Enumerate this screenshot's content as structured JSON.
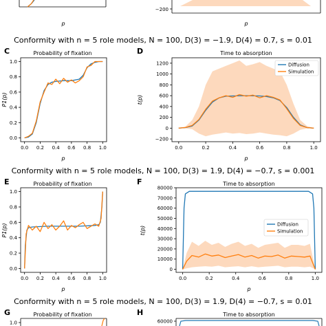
{
  "section_titles": [
    "Conformity with n = 5 role models, N = 100, D(3) = −1.9, D(4) = 0.7, s = 0.01",
    "Conformity with n = 5 role models, N = 100, D(3) = 1.9, D(4) = −0.7, s = 0.001",
    "Conformity with n = 5 role models, N = 100, D(3) = 1.9, D(4) = −0.7, s = 0.01"
  ],
  "colors": {
    "diffusion": "#1f77b4",
    "simulation": "#ff7f0e",
    "band": "#fdd9bd"
  },
  "chart_data": [
    {
      "id": "top-partial-right",
      "type": "line",
      "ylabel": "",
      "xlabel": "p",
      "yticks": [
        "−200"
      ],
      "ylim": [
        -250,
        1300
      ]
    },
    {
      "id": "C",
      "panel_label": "C",
      "type": "line",
      "title": "Probability of fixation",
      "xlabel": "p",
      "ylabel": "P1(p)",
      "xlim": [
        -0.05,
        1.05
      ],
      "ylim": [
        -0.05,
        1.05
      ],
      "xticks": [
        "0.0",
        "0.2",
        "0.4",
        "0.6",
        "0.8",
        "1.0"
      ],
      "yticks": [
        "0.0",
        "0.2",
        "0.4",
        "0.6",
        "0.8",
        "1.0"
      ],
      "series": [
        {
          "name": "Diffusion",
          "x": [
            0,
            0.05,
            0.1,
            0.15,
            0.2,
            0.25,
            0.3,
            0.35,
            0.4,
            0.5,
            0.6,
            0.7,
            0.75,
            0.8,
            0.85,
            0.9,
            0.95,
            1.0
          ],
          "values": [
            0,
            0.01,
            0.05,
            0.2,
            0.45,
            0.62,
            0.7,
            0.73,
            0.74,
            0.75,
            0.75,
            0.77,
            0.82,
            0.92,
            0.97,
            0.99,
            1.0,
            1.0
          ]
        },
        {
          "name": "Simulation",
          "x": [
            0,
            0.05,
            0.1,
            0.15,
            0.2,
            0.25,
            0.3,
            0.35,
            0.4,
            0.45,
            0.5,
            0.55,
            0.6,
            0.65,
            0.7,
            0.75,
            0.8,
            0.85,
            0.9,
            0.95,
            1.0
          ],
          "values": [
            0,
            0.02,
            0.06,
            0.22,
            0.47,
            0.6,
            0.72,
            0.7,
            0.77,
            0.71,
            0.78,
            0.73,
            0.76,
            0.72,
            0.75,
            0.8,
            0.93,
            0.95,
            1.0,
            1.0,
            1.0
          ]
        }
      ]
    },
    {
      "id": "D",
      "panel_label": "D",
      "type": "line",
      "title": "Time to absorption",
      "xlabel": "p",
      "ylabel": "t(p)",
      "xlim": [
        -0.05,
        1.05
      ],
      "ylim": [
        -250,
        1300
      ],
      "xticks": [
        "0.0",
        "0.2",
        "0.4",
        "0.6",
        "0.8",
        "1.0"
      ],
      "yticks": [
        "−200",
        "0",
        "200",
        "400",
        "600",
        "800",
        "1000",
        "1200"
      ],
      "legend": [
        "Diffusion",
        "Simulation"
      ],
      "legend_position": "top-right",
      "series": [
        {
          "name": "Diffusion",
          "x": [
            0,
            0.05,
            0.1,
            0.15,
            0.2,
            0.25,
            0.3,
            0.35,
            0.4,
            0.5,
            0.6,
            0.65,
            0.7,
            0.75,
            0.8,
            0.85,
            0.9,
            0.95,
            1.0
          ],
          "values": [
            0,
            10,
            40,
            150,
            330,
            480,
            560,
            590,
            595,
            600,
            595,
            585,
            560,
            510,
            380,
            200,
            60,
            10,
            0
          ]
        },
        {
          "name": "Simulation",
          "x": [
            0,
            0.05,
            0.1,
            0.15,
            0.2,
            0.25,
            0.3,
            0.35,
            0.4,
            0.45,
            0.5,
            0.55,
            0.6,
            0.65,
            0.7,
            0.75,
            0.8,
            0.85,
            0.9,
            0.95,
            1.0
          ],
          "values": [
            0,
            12,
            50,
            160,
            350,
            500,
            560,
            600,
            570,
            620,
            590,
            610,
            560,
            600,
            570,
            520,
            360,
            180,
            50,
            10,
            0
          ],
          "band_upper": [
            0,
            30,
            150,
            400,
            800,
            1050,
            1100,
            1150,
            1200,
            1250,
            1150,
            1180,
            1220,
            1150,
            1100,
            1050,
            800,
            450,
            150,
            40,
            0
          ],
          "band_lower": [
            0,
            -5,
            -20,
            -100,
            -150,
            -120,
            -100,
            -80,
            -100,
            -90,
            -110,
            -100,
            -80,
            -100,
            -120,
            -130,
            -150,
            -100,
            -30,
            -5,
            0
          ]
        }
      ]
    },
    {
      "id": "E",
      "panel_label": "E",
      "type": "line",
      "title": "Probability of fixation",
      "xlabel": "p",
      "ylabel": "P1(p)",
      "xlim": [
        -0.05,
        1.05
      ],
      "ylim": [
        -0.05,
        1.05
      ],
      "xticks": [
        "0.0",
        "0.2",
        "0.4",
        "0.6",
        "0.8",
        "1.0"
      ],
      "yticks": [
        "0.0",
        "0.2",
        "0.4",
        "0.6",
        "0.8",
        "1.0"
      ],
      "series": [
        {
          "name": "Diffusion",
          "x": [
            0,
            0.01,
            0.03,
            0.05,
            0.1,
            0.3,
            0.5,
            0.7,
            0.9,
            0.95,
            0.97,
            0.99,
            1.0
          ],
          "values": [
            0,
            0.3,
            0.5,
            0.53,
            0.54,
            0.55,
            0.55,
            0.55,
            0.56,
            0.57,
            0.6,
            0.8,
            1.0
          ]
        },
        {
          "name": "Simulation",
          "x": [
            0,
            0.02,
            0.05,
            0.1,
            0.15,
            0.2,
            0.25,
            0.3,
            0.35,
            0.4,
            0.45,
            0.5,
            0.55,
            0.6,
            0.65,
            0.7,
            0.75,
            0.8,
            0.85,
            0.9,
            0.95,
            0.98,
            1.0
          ],
          "values": [
            0,
            0.45,
            0.56,
            0.5,
            0.55,
            0.48,
            0.6,
            0.52,
            0.57,
            0.5,
            0.55,
            0.62,
            0.5,
            0.56,
            0.53,
            0.57,
            0.6,
            0.52,
            0.55,
            0.58,
            0.55,
            0.65,
            1.0
          ]
        }
      ]
    },
    {
      "id": "F",
      "panel_label": "F",
      "type": "line",
      "title": "Time to absorption",
      "xlabel": "p",
      "ylabel": "t(p)",
      "xlim": [
        -0.05,
        1.05
      ],
      "ylim": [
        -3000,
        80000
      ],
      "xticks": [
        "0.0",
        "0.2",
        "0.4",
        "0.6",
        "0.8",
        "1.0"
      ],
      "yticks": [
        "0",
        "10000",
        "20000",
        "30000",
        "40000",
        "50000",
        "60000",
        "70000",
        "80000"
      ],
      "legend": [
        "Diffusion",
        "Simulation"
      ],
      "legend_position": "center-right",
      "series": [
        {
          "name": "Diffusion",
          "x": [
            0,
            0.005,
            0.01,
            0.02,
            0.05,
            0.5,
            0.95,
            0.98,
            0.99,
            0.995,
            1.0
          ],
          "values": [
            0,
            30000,
            60000,
            74000,
            76500,
            76500,
            76500,
            74000,
            60000,
            30000,
            0
          ]
        },
        {
          "name": "Simulation",
          "x": [
            0,
            0.03,
            0.07,
            0.12,
            0.17,
            0.22,
            0.27,
            0.32,
            0.37,
            0.42,
            0.47,
            0.52,
            0.57,
            0.62,
            0.67,
            0.72,
            0.77,
            0.82,
            0.87,
            0.92,
            0.96,
            1.0
          ],
          "values": [
            0,
            8000,
            13500,
            12000,
            15000,
            13000,
            14000,
            11500,
            13000,
            14500,
            12000,
            13500,
            11000,
            13000,
            12500,
            14000,
            11000,
            13000,
            12500,
            12000,
            13000,
            0
          ],
          "band_upper": [
            0,
            16000,
            27000,
            23000,
            28000,
            24000,
            26000,
            22000,
            25000,
            27000,
            23000,
            25000,
            21000,
            24000,
            25000,
            26000,
            21000,
            24000,
            24000,
            23000,
            25000,
            0
          ],
          "band_lower": [
            0,
            1000,
            2000,
            2500,
            3000,
            2500,
            3500,
            2000,
            2500,
            3000,
            2000,
            3000,
            2000,
            2500,
            3000,
            3500,
            2000,
            2500,
            2500,
            2000,
            2500,
            0
          ]
        }
      ]
    },
    {
      "id": "G",
      "panel_label": "G",
      "type": "line",
      "title": "Probability of fixation",
      "yticks": [
        "1.0"
      ]
    },
    {
      "id": "H",
      "panel_label": "H",
      "type": "line",
      "title": "Time to absorption",
      "yticks": [
        "60000"
      ]
    }
  ]
}
